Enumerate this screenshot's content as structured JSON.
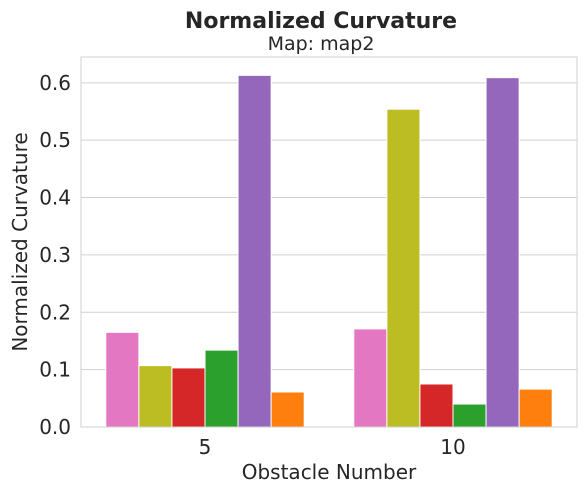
{
  "chart_data": {
    "type": "bar",
    "title": "Normalized Curvature",
    "subtitle": "Map: map2",
    "xlabel": "Obstacle Number",
    "ylabel": "Normalized Curvature",
    "categories": [
      "5",
      "10"
    ],
    "ylim": [
      0,
      0.645
    ],
    "yticks": [
      0.0,
      0.1,
      0.2,
      0.3,
      0.4,
      0.5,
      0.6
    ],
    "ytick_labels": [
      "0.0",
      "0.1",
      "0.2",
      "0.3",
      "0.4",
      "0.5",
      "0.6"
    ],
    "grid": true,
    "legend": false,
    "series": [
      {
        "color": "#e377c2",
        "values": [
          0.165,
          0.171
        ]
      },
      {
        "color": "#bcbd22",
        "values": [
          0.107,
          0.554
        ]
      },
      {
        "color": "#d62728",
        "values": [
          0.103,
          0.075
        ]
      },
      {
        "color": "#2ca02c",
        "values": [
          0.134,
          0.04
        ]
      },
      {
        "color": "#9467bd",
        "values": [
          0.613,
          0.609
        ]
      },
      {
        "color": "#ff7f0e",
        "values": [
          0.061,
          0.066
        ]
      }
    ]
  }
}
